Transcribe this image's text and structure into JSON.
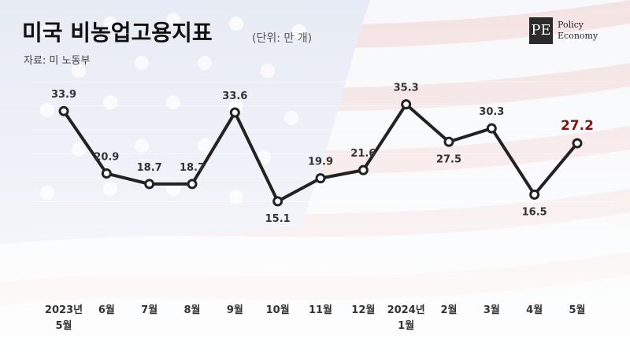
{
  "header": {
    "title": "미국 비농업고용지표",
    "unit": "(단위: 만 개)",
    "source": "자료: 미 노동부"
  },
  "logo": {
    "mark": "PE",
    "line1": "Policy",
    "line2": "Economy"
  },
  "colors": {
    "line": "#222222",
    "highlight": "#8b1010",
    "label": "#333333",
    "background_flag_red": "#e2b0b0",
    "background_flag_blue": "#c7d2ea"
  },
  "chart_data": {
    "type": "line",
    "title": "미국 비농업고용지표",
    "subtitle": "(단위: 만 개)",
    "categories": [
      [
        "2023년",
        "5월"
      ],
      [
        "6월"
      ],
      [
        "7월"
      ],
      [
        "8월"
      ],
      [
        "9월"
      ],
      [
        "10월"
      ],
      [
        "11월"
      ],
      [
        "12월"
      ],
      [
        "2024년",
        "1월"
      ],
      [
        "2월"
      ],
      [
        "3월"
      ],
      [
        "4월"
      ],
      [
        "5월"
      ]
    ],
    "series": [
      {
        "values": [
          33.9,
          20.9,
          18.7,
          18.7,
          33.6,
          15.1,
          19.9,
          21.6,
          35.3,
          27.5,
          30.3,
          16.5,
          27.2
        ]
      }
    ],
    "value_labels": [
      "33.9",
      "20.9",
      "18.7",
      "18.7",
      "33.6",
      "15.1",
      "19.9",
      "21.6",
      "35.3",
      "27.5",
      "30.3",
      "16.5",
      "27.2"
    ],
    "highlight_index": 12,
    "ylim": [
      0,
      40
    ],
    "grid": true,
    "legend": "none"
  }
}
